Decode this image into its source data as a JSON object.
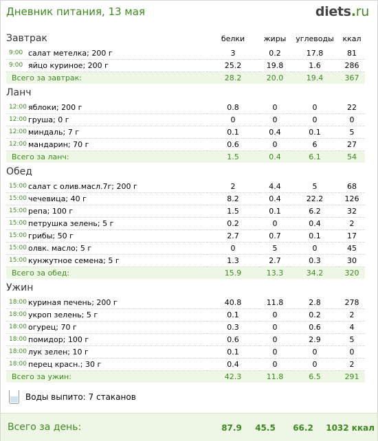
{
  "header": {
    "title": "Дневник питания, 13 мая",
    "logo_main": "diets",
    "logo_dot": ".",
    "logo_tld": "ru"
  },
  "columns": {
    "proteins": "белки",
    "fats": "жиры",
    "carbs": "углеводы",
    "kcal": "ккал"
  },
  "meals": [
    {
      "title": "Завтрак",
      "rows": [
        {
          "time": "9:00",
          "name": "салат метелка; 200 г",
          "p": "3",
          "f": "0.2",
          "c": "17.8",
          "k": "81"
        },
        {
          "time": "9:00",
          "name": "яйцо куриное; 200 г",
          "p": "25.2",
          "f": "19.8",
          "c": "1.6",
          "k": "286"
        }
      ],
      "total": {
        "label": "Всего за завтрак:",
        "p": "28.2",
        "f": "20.0",
        "c": "19.4",
        "k": "367"
      }
    },
    {
      "title": "Ланч",
      "rows": [
        {
          "time": "12:00",
          "name": "яблоки; 200 г",
          "p": "0.8",
          "f": "0",
          "c": "0",
          "k": "22"
        },
        {
          "time": "12:00",
          "name": "груша; 0 г",
          "p": "0",
          "f": "0",
          "c": "0",
          "k": "0"
        },
        {
          "time": "12:00",
          "name": "миндаль; 7 г",
          "p": "0.1",
          "f": "0.4",
          "c": "0.1",
          "k": "5"
        },
        {
          "time": "12:00",
          "name": "мандарин; 70 г",
          "p": "0.6",
          "f": "0",
          "c": "6",
          "k": "27"
        }
      ],
      "total": {
        "label": "Всего за ланч:",
        "p": "1.5",
        "f": "0.4",
        "c": "6.1",
        "k": "54"
      }
    },
    {
      "title": "Обед",
      "rows": [
        {
          "time": "15:00",
          "name": "салат с олив.масл.7г; 200 г",
          "p": "2",
          "f": "4.4",
          "c": "5",
          "k": "68"
        },
        {
          "time": "15:00",
          "name": "чечевица; 40 г",
          "p": "8.2",
          "f": "0.4",
          "c": "22.2",
          "k": "126"
        },
        {
          "time": "15:00",
          "name": "репа; 100 г",
          "p": "1.5",
          "f": "0.1",
          "c": "6.2",
          "k": "32"
        },
        {
          "time": "15:00",
          "name": "петрушка зелень; 5 г",
          "p": "0.2",
          "f": "0",
          "c": "0.4",
          "k": "2"
        },
        {
          "time": "15:00",
          "name": "грибы; 50 г",
          "p": "2.7",
          "f": "0.7",
          "c": "0.1",
          "k": "17"
        },
        {
          "time": "15:00",
          "name": "олвк. масло; 5 г",
          "p": "0",
          "f": "5",
          "c": "0",
          "k": "45"
        },
        {
          "time": "15:00",
          "name": "кунжутное семена; 5 г",
          "p": "1.3",
          "f": "2.7",
          "c": "0.3",
          "k": "30"
        }
      ],
      "total": {
        "label": "Всего за обед:",
        "p": "15.9",
        "f": "13.3",
        "c": "34.2",
        "k": "320"
      }
    },
    {
      "title": "Ужин",
      "rows": [
        {
          "time": "18:00",
          "name": "куриная печень; 200 г",
          "p": "40.8",
          "f": "11.8",
          "c": "2.8",
          "k": "278"
        },
        {
          "time": "18:00",
          "name": "укроп зелень; 5 г",
          "p": "0.1",
          "f": "0",
          "c": "0.2",
          "k": "2"
        },
        {
          "time": "18:00",
          "name": "огурец; 70 г",
          "p": "0.3",
          "f": "0",
          "c": "0.6",
          "k": "4"
        },
        {
          "time": "18:00",
          "name": "помидор; 100 г",
          "p": "0.6",
          "f": "0",
          "c": "2.9",
          "k": "5"
        },
        {
          "time": "18:00",
          "name": "лук зелен; 10 г",
          "p": "0.1",
          "f": "0",
          "c": "0",
          "k": "0"
        },
        {
          "time": "18:00",
          "name": "перец красн.; 30 г",
          "p": "0.4",
          "f": "0",
          "c": "0",
          "k": "2"
        }
      ],
      "total": {
        "label": "Всего за ужин:",
        "p": "42.3",
        "f": "11.8",
        "c": "6.5",
        "k": "291"
      }
    }
  ],
  "water": {
    "icon": "water-glass-icon",
    "text": "Воды выпито: 7 стаканов"
  },
  "day_total": {
    "label": "Всего за день:",
    "p": "87.9",
    "f": "45.5",
    "c": "66.2",
    "k": "1032 ккал"
  },
  "colors": {
    "accent": "#3c8a1e",
    "total_bg": "#eef6e6",
    "border": "#d6d6d6"
  }
}
